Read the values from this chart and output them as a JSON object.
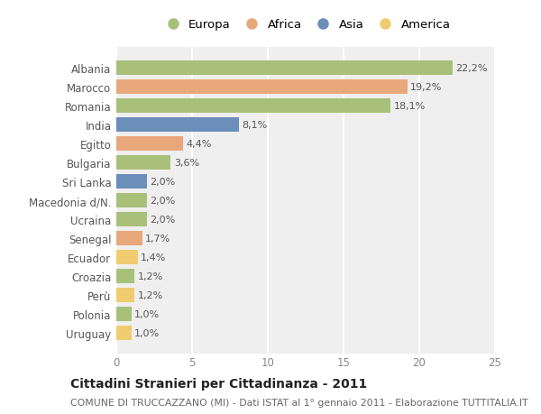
{
  "categories": [
    "Albania",
    "Marocco",
    "Romania",
    "India",
    "Egitto",
    "Bulgaria",
    "Sri Lanka",
    "Macedonia d/N.",
    "Ucraina",
    "Senegal",
    "Ecuador",
    "Croazia",
    "Perù",
    "Polonia",
    "Uruguay"
  ],
  "values": [
    22.2,
    19.2,
    18.1,
    8.1,
    4.4,
    3.6,
    2.0,
    2.0,
    2.0,
    1.7,
    1.4,
    1.2,
    1.2,
    1.0,
    1.0
  ],
  "labels": [
    "22,2%",
    "19,2%",
    "18,1%",
    "8,1%",
    "4,4%",
    "3,6%",
    "2,0%",
    "2,0%",
    "2,0%",
    "1,7%",
    "1,4%",
    "1,2%",
    "1,2%",
    "1,0%",
    "1,0%"
  ],
  "continents": [
    "Europa",
    "Africa",
    "Europa",
    "Asia",
    "Africa",
    "Europa",
    "Asia",
    "Europa",
    "Europa",
    "Africa",
    "America",
    "Europa",
    "America",
    "Europa",
    "America"
  ],
  "colors": {
    "Europa": "#a8c07a",
    "Africa": "#e8a87c",
    "Asia": "#6b8eba",
    "America": "#f0cc70"
  },
  "legend_order": [
    "Europa",
    "Africa",
    "Asia",
    "America"
  ],
  "title": "Cittadini Stranieri per Cittadinanza - 2011",
  "subtitle": "COMUNE DI TRUCCAZZANO (MI) - Dati ISTAT al 1° gennaio 2011 - Elaborazione TUTTITALIA.IT",
  "xlim": [
    0,
    25
  ],
  "xticks": [
    0,
    5,
    10,
    15,
    20,
    25
  ],
  "background_color": "#ffffff",
  "plot_bg_color": "#efefef",
  "grid_color": "#ffffff",
  "bar_height": 0.75,
  "label_fontsize": 8.0,
  "ytick_fontsize": 8.5,
  "xtick_fontsize": 8.5,
  "legend_fontsize": 9.5,
  "title_fontsize": 10.0,
  "subtitle_fontsize": 7.8
}
